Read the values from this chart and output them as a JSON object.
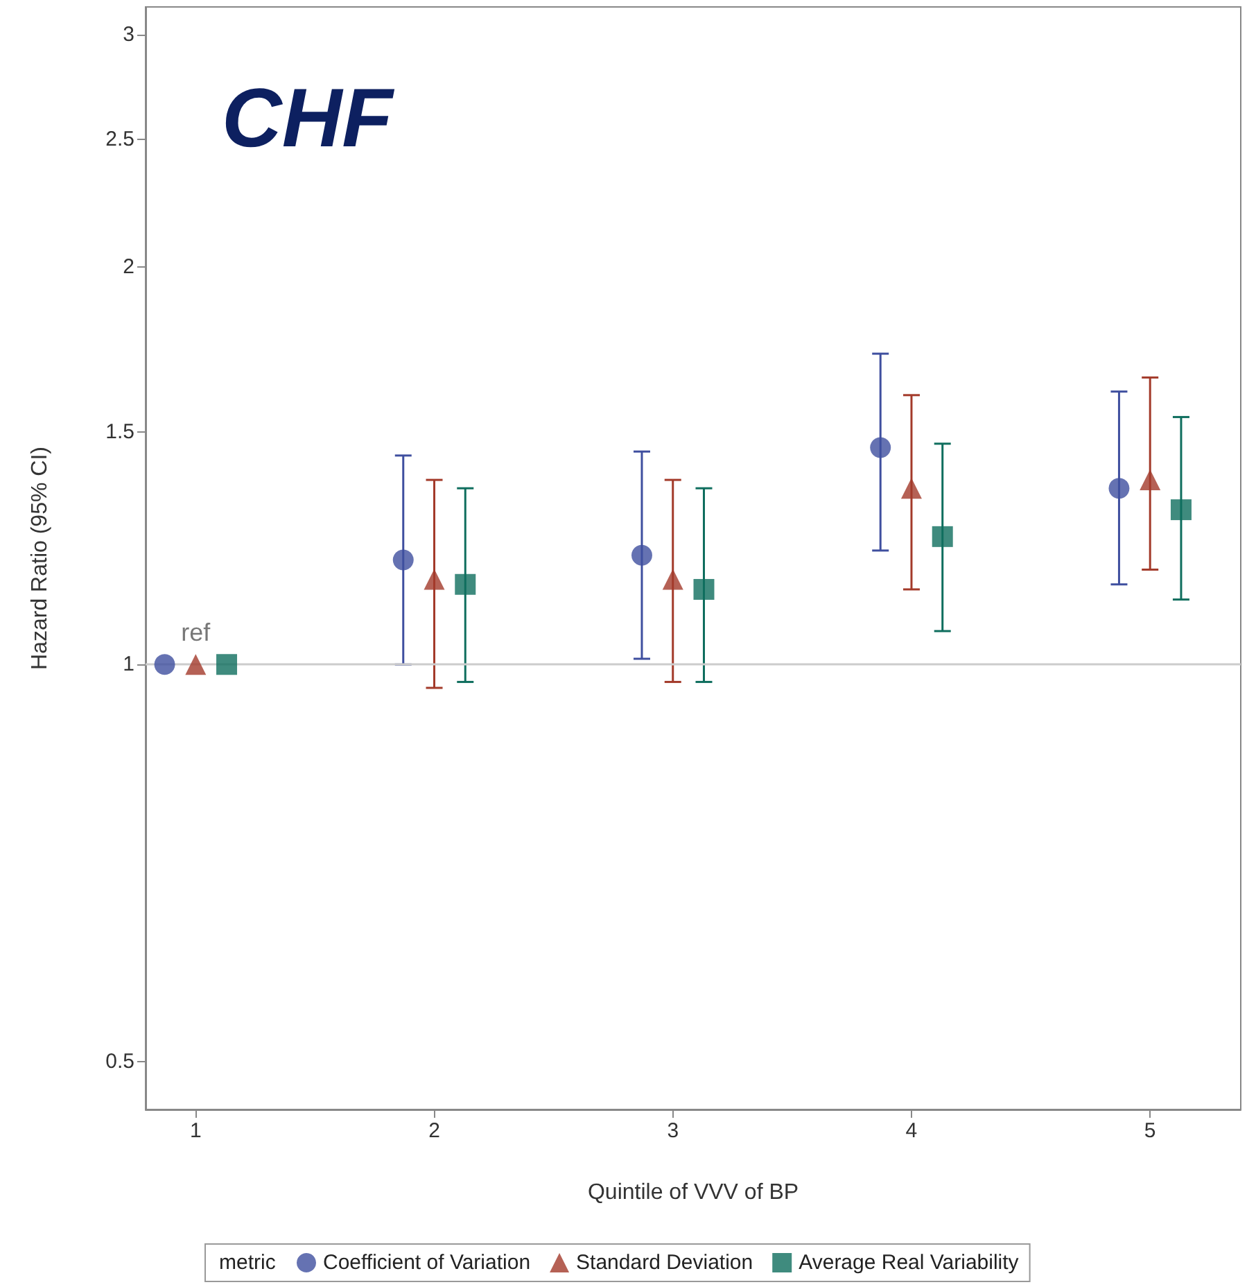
{
  "chart_data": {
    "type": "scatter",
    "title": "CHF",
    "xlabel": "Quintile of VVV of BP",
    "ylabel": "Hazard Ratio (95% CI)",
    "legend_title": "metric",
    "xlim": [
      0.79,
      5.38
    ],
    "xticks": [
      1,
      2,
      3,
      4,
      5
    ],
    "ylim": [
      0.46,
      3.15
    ],
    "yticks": [
      0.5,
      1,
      1.5,
      2,
      2.5,
      3
    ],
    "log": "y",
    "series": [
      {
        "name": "Coefficient of Variation",
        "color": "#3f4f9f",
        "marker": "circle",
        "x": [
          0.87,
          1.87,
          2.87,
          3.87,
          4.87
        ],
        "values": [
          1,
          1.2,
          1.21,
          1.46,
          1.36
        ],
        "errors": [
          null,
          [
            1.0,
            1.44
          ],
          [
            1.01,
            1.45
          ],
          [
            1.22,
            1.72
          ],
          [
            1.15,
            1.61
          ]
        ]
      },
      {
        "name": "Standard Deviation",
        "color": "#a33a2a",
        "marker": "triangle",
        "x": [
          1,
          2,
          3,
          4,
          5
        ],
        "values": [
          1,
          1.16,
          1.16,
          1.36,
          1.38
        ],
        "errors": [
          null,
          [
            0.96,
            1.38
          ],
          [
            0.97,
            1.38
          ],
          [
            1.14,
            1.6
          ],
          [
            1.18,
            1.65
          ]
        ]
      },
      {
        "name": "Average Real Variability",
        "color": "#0f6e5e",
        "marker": "square",
        "x": [
          1.13,
          2.13,
          3.13,
          4.13,
          5.13
        ],
        "values": [
          1,
          1.15,
          1.14,
          1.25,
          1.31
        ],
        "errors": [
          null,
          [
            0.97,
            1.36
          ],
          [
            0.97,
            1.36
          ],
          [
            1.06,
            1.47
          ],
          [
            1.12,
            1.54
          ]
        ]
      }
    ],
    "ref_lines": [
      {
        "axis": "y",
        "value": 1,
        "color": "#cccccc"
      }
    ],
    "annotations": [
      {
        "text": "ref",
        "x": 1,
        "y": 1
      }
    ],
    "grid": false,
    "legend": "bottom"
  }
}
